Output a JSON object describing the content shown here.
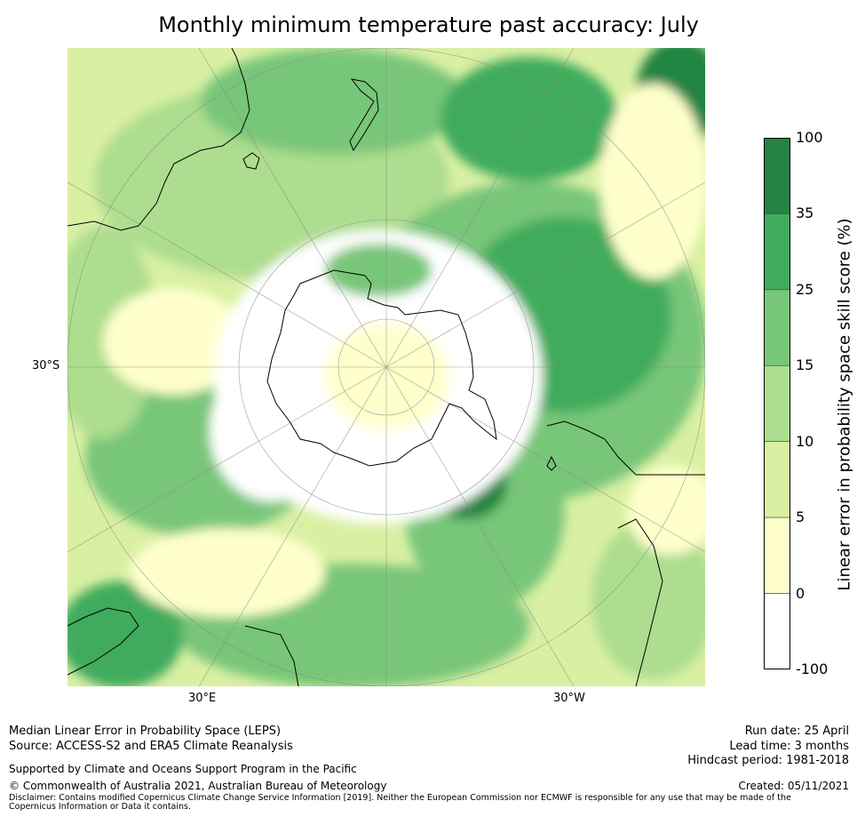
{
  "title": "Monthly minimum temperature past accuracy: July",
  "map": {
    "labels": {
      "lat_30s": "30°S",
      "lon_30e": "30°E",
      "lon_30w": "30°W"
    },
    "palette": [
      "#ffffff",
      "#ffffcc",
      "#d9f0a3",
      "#addd8e",
      "#78c679",
      "#41ab5d",
      "#238443"
    ]
  },
  "colorbar": {
    "label": "Linear error in probability space skill score (%)",
    "ticks": [
      "100",
      "35",
      "25",
      "15",
      "10",
      "5",
      "0",
      "-100"
    ],
    "colors_top_to_bottom": [
      "#238443",
      "#41ab5d",
      "#78c679",
      "#addd8e",
      "#d9f0a3",
      "#ffffcc",
      "#ffffff"
    ]
  },
  "footer": {
    "left1": "Median Linear Error in Probability Space (LEPS)",
    "left2": "Source: ACCESS-S2 and ERA5 Climate Reanalysis",
    "support": "Supported by Climate and Oceans Support Program in the Pacific",
    "copyright": "© Commonwealth of Australia 2021, Australian Bureau of Meteorology",
    "disclaimer": "Disclaimer: Contains modified Copernicus Climate Change Service Information [2019]. Neither the European Commission nor ECMWF is responsible for any use that may be made of the Copernicus Information or Data it contains.",
    "run_date": "Run date: 25 April",
    "lead_time": "Lead time: 3 months",
    "hindcast": "Hindcast period: 1981-2018",
    "created": "Created: 05/11/2021"
  }
}
